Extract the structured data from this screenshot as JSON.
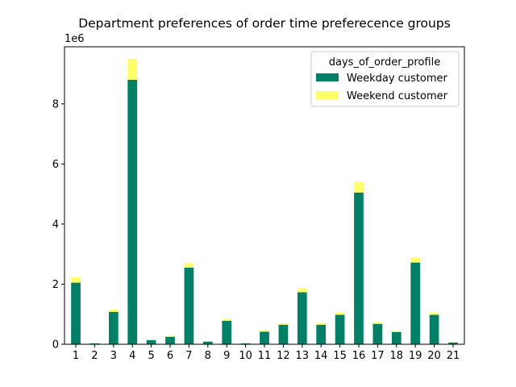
{
  "chart_data": {
    "type": "bar",
    "stacked": true,
    "title": "Department preferences of order time preferecence groups",
    "scale_label": "1e6",
    "xlabel": "",
    "ylabel": "",
    "categories": [
      "1",
      "2",
      "3",
      "4",
      "5",
      "6",
      "7",
      "8",
      "9",
      "10",
      "11",
      "12",
      "13",
      "14",
      "15",
      "16",
      "17",
      "18",
      "19",
      "20",
      "21"
    ],
    "ylim": [
      0,
      9.9
    ],
    "yticks": [
      "0",
      "2",
      "4",
      "6",
      "8"
    ],
    "y_multiplier": 1000000,
    "series": [
      {
        "name": "Weekday customer",
        "color": "#008066",
        "values": [
          2.05,
          0.03,
          1.08,
          8.8,
          0.14,
          0.25,
          2.55,
          0.09,
          0.78,
          0.03,
          0.42,
          0.65,
          1.73,
          0.65,
          0.98,
          5.05,
          0.68,
          0.41,
          2.72,
          0.98,
          0.06
        ]
      },
      {
        "name": "Weekend customer",
        "color": "#ffff66",
        "values": [
          0.18,
          0.005,
          0.08,
          0.7,
          0.02,
          0.03,
          0.15,
          0.01,
          0.06,
          0.003,
          0.03,
          0.05,
          0.15,
          0.06,
          0.08,
          0.35,
          0.05,
          0.03,
          0.17,
          0.08,
          0.005
        ]
      }
    ],
    "legend": {
      "title": "days_of_order_profile",
      "placement": "top-right"
    },
    "grid": false
  }
}
